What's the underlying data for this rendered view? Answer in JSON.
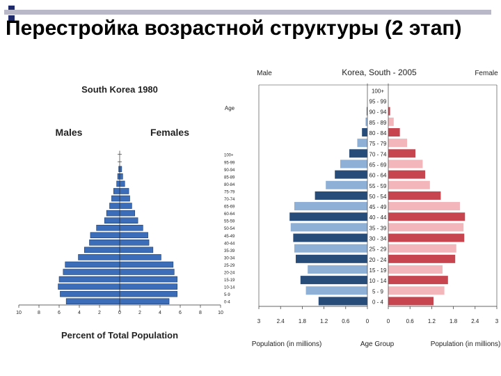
{
  "slide": {
    "title": "Перестройка возрастной структуры (2 этап)"
  },
  "colors": {
    "korea1980_bar": "#3b6db8",
    "korea2005_male": [
      "#274c7a",
      "#8eafd6"
    ],
    "korea2005_female": [
      "#c6454f",
      "#f2b6bb"
    ]
  },
  "chart_data": [
    {
      "type": "bar",
      "orientation": "population-pyramid",
      "title": "South Korea 1980",
      "xlabel": "Percent of Total Population",
      "left_label": "Males",
      "right_label": "Females",
      "age_label": "Age",
      "age_groups": [
        "0-4",
        "5-9",
        "10-14",
        "15-19",
        "20-24",
        "25-29",
        "30-34",
        "35-39",
        "40-44",
        "45-49",
        "50-54",
        "55-59",
        "60-64",
        "65-69",
        "70-74",
        "75-79",
        "80-84",
        "85-89",
        "90-94",
        "95-99",
        "100+"
      ],
      "x_ticks": [
        "10",
        "8",
        "6",
        "4",
        "2",
        "0",
        "2",
        "4",
        "6",
        "8",
        "10"
      ],
      "xlim": [
        -10,
        10
      ],
      "series": [
        {
          "name": "Males",
          "values": [
            5.3,
            5.9,
            6.1,
            6.0,
            5.6,
            5.4,
            4.1,
            3.5,
            3.0,
            2.9,
            2.3,
            1.5,
            1.3,
            1.0,
            0.8,
            0.6,
            0.3,
            0.2,
            0.1,
            0.0,
            0.0
          ]
        },
        {
          "name": "Females",
          "values": [
            4.9,
            5.7,
            5.7,
            5.7,
            5.4,
            5.3,
            4.1,
            3.3,
            2.9,
            2.8,
            2.3,
            1.8,
            1.5,
            1.2,
            1.0,
            0.9,
            0.5,
            0.3,
            0.2,
            0.0,
            0.0
          ]
        }
      ]
    },
    {
      "type": "bar",
      "orientation": "population-pyramid",
      "title": "Korea, South - 2005",
      "left_label": "Male",
      "right_label": "Female",
      "xlabel_left": "Population (in millions)",
      "xlabel_center": "Age Group",
      "xlabel_right": "Population (in millions)",
      "age_groups": [
        "0 - 4",
        "5 - 9",
        "10 - 14",
        "15 - 19",
        "20 - 24",
        "25 - 29",
        "30 - 34",
        "35 - 39",
        "40 - 44",
        "45 - 49",
        "50 - 54",
        "55 - 59",
        "60 - 64",
        "65 - 69",
        "70 - 74",
        "75 - 79",
        "80 - 84",
        "85 - 89",
        "90 - 94",
        "95 - 99",
        "100+"
      ],
      "x_ticks_left": [
        "3",
        "2.4",
        "1.8",
        "1.2",
        "0.6",
        "0"
      ],
      "x_ticks_right": [
        "0",
        "0.6",
        "1.2",
        "1.8",
        "2.4",
        "3"
      ],
      "xlim": [
        0,
        3
      ],
      "series": [
        {
          "name": "Male",
          "values": [
            1.35,
            1.7,
            1.85,
            1.65,
            1.98,
            2.02,
            2.05,
            2.12,
            2.15,
            2.02,
            1.45,
            1.15,
            0.9,
            0.75,
            0.5,
            0.28,
            0.15,
            0.05,
            0.02,
            0.0,
            0.0
          ]
        },
        {
          "name": "Female",
          "values": [
            1.25,
            1.55,
            1.65,
            1.5,
            1.85,
            1.88,
            2.1,
            2.08,
            2.12,
            1.98,
            1.45,
            1.15,
            1.02,
            0.95,
            0.75,
            0.52,
            0.32,
            0.15,
            0.05,
            0.0,
            0.0
          ]
        }
      ]
    }
  ]
}
